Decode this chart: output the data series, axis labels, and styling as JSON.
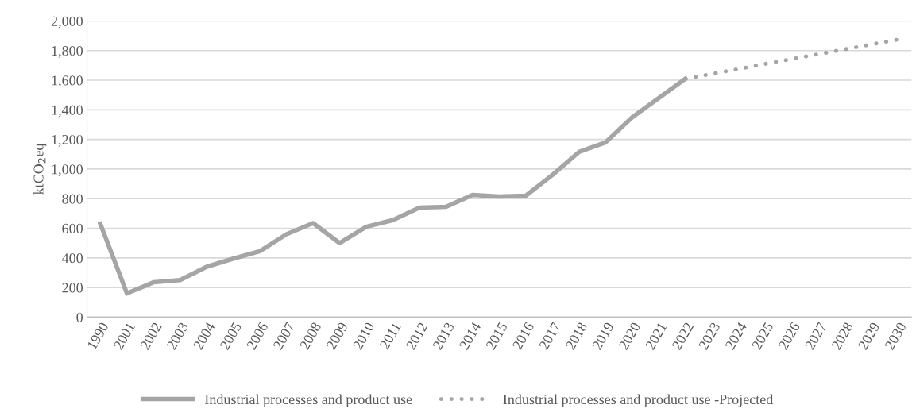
{
  "chart_data": {
    "type": "line",
    "ylabel": "ktCO$_{2}$eq",
    "categories": [
      "1990",
      "2001",
      "2002",
      "2003",
      "2004",
      "2005",
      "2006",
      "2007",
      "2008",
      "2009",
      "2010",
      "2011",
      "2012",
      "2013",
      "2014",
      "2015",
      "2016",
      "2017",
      "2018",
      "2019",
      "2020",
      "2021",
      "2022",
      "2023",
      "2024",
      "2025",
      "2026",
      "2027",
      "2028",
      "2029",
      "2030"
    ],
    "series": [
      {
        "name": "Industrial processes and product use",
        "color": "#a5a5a5",
        "line_style": "solid",
        "values": [
          630,
          160,
          235,
          250,
          340,
          395,
          445,
          560,
          635,
          500,
          610,
          655,
          740,
          745,
          825,
          815,
          820,
          960,
          1115,
          1180,
          1350,
          1480,
          1610,
          null,
          null,
          null,
          null,
          null,
          null,
          null,
          null
        ]
      },
      {
        "name": "Industrial processes and product use -Projected",
        "color": "#a5a5a5",
        "line_style": "dotted",
        "values": [
          null,
          null,
          null,
          null,
          null,
          null,
          null,
          null,
          null,
          null,
          null,
          null,
          null,
          null,
          null,
          null,
          null,
          null,
          null,
          null,
          null,
          null,
          1610,
          1643,
          1676,
          1710,
          1743,
          1776,
          1809,
          1842,
          1875
        ]
      }
    ],
    "ylim": [
      0,
      2000
    ],
    "yticks": [
      {
        "value": 0,
        "label": "0"
      },
      {
        "value": 200,
        "label": "200"
      },
      {
        "value": 400,
        "label": "400"
      },
      {
        "value": 600,
        "label": "600"
      },
      {
        "value": 800,
        "label": "800"
      },
      {
        "value": 1000,
        "label": "1,000"
      },
      {
        "value": 1200,
        "label": "1,200"
      },
      {
        "value": 1400,
        "label": "1,400"
      },
      {
        "value": 1600,
        "label": "1,600"
      },
      {
        "value": 1800,
        "label": "1,800"
      },
      {
        "value": 2000,
        "label": "2,000"
      }
    ],
    "grid": "y",
    "legend": "bottom"
  }
}
